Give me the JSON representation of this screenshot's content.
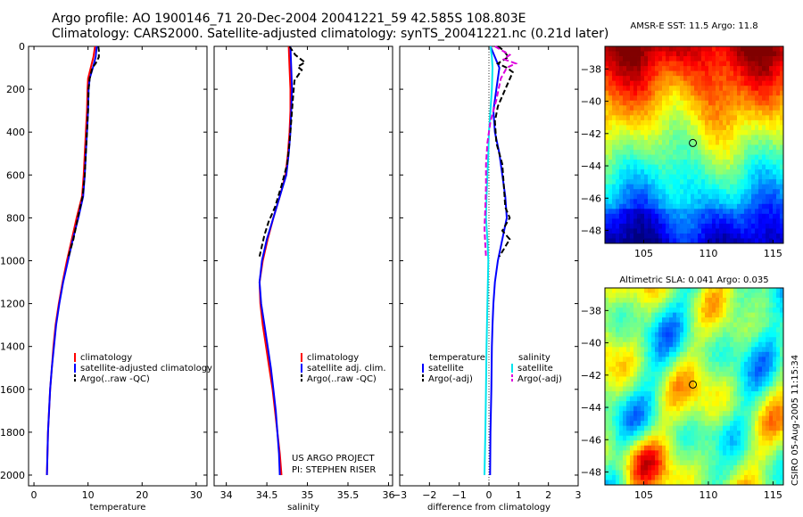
{
  "header": {
    "line1": "Argo profile: AO 1900146_71 20-Dec-2004 20041221_59 42.585S 108.803E",
    "line2": "Climatology: CARS2000. Satellite-adjusted climatology: synTS_20041221.nc (0.21d later)"
  },
  "project": {
    "line1": "US ARGO PROJECT",
    "line2": "PI: STEPHEN RISER"
  },
  "stamp": "CSIRO 05-Aug-2005 11:15:34",
  "colors": {
    "climatology": "#ff0000",
    "satellite": "#0000ff",
    "argo": "#000000",
    "satellite_salinity_diff": "#00e5ee",
    "argo_salinity_diff": "#dd00dd"
  },
  "chart_data": [
    {
      "type": "line",
      "id": "temperature",
      "xlabel": "temperature",
      "xlim": [
        -1,
        32
      ],
      "ylim": [
        0,
        2050
      ],
      "y_reversed": true,
      "xticks": [
        0,
        10,
        20,
        30
      ],
      "yticks": [
        0,
        200,
        400,
        600,
        800,
        1000,
        1200,
        1400,
        1600,
        1800,
        2000
      ],
      "legend": [
        "climatology",
        "satellite-adjusted climatology",
        "Argo(..raw -QC)"
      ],
      "series": [
        {
          "name": "climatology",
          "color": "#ff0000",
          "points": [
            [
              11.3,
              0
            ],
            [
              11.0,
              50
            ],
            [
              10.5,
              100
            ],
            [
              10.0,
              150
            ],
            [
              9.9,
              200
            ],
            [
              9.8,
              300
            ],
            [
              9.6,
              400
            ],
            [
              9.4,
              500
            ],
            [
              9.2,
              600
            ],
            [
              8.9,
              700
            ],
            [
              7.9,
              800
            ],
            [
              7.0,
              900
            ],
            [
              6.1,
              1000
            ],
            [
              5.3,
              1100
            ],
            [
              4.6,
              1200
            ],
            [
              4.0,
              1300
            ],
            [
              3.6,
              1400
            ],
            [
              3.3,
              1500
            ],
            [
              3.0,
              1600
            ],
            [
              2.8,
              1700
            ],
            [
              2.6,
              1800
            ],
            [
              2.5,
              1900
            ],
            [
              2.4,
              2000
            ]
          ]
        },
        {
          "name": "satellite-adjusted climatology",
          "color": "#0000ff",
          "points": [
            [
              11.6,
              0
            ],
            [
              11.4,
              50
            ],
            [
              10.9,
              100
            ],
            [
              10.3,
              150
            ],
            [
              10.1,
              200
            ],
            [
              10.0,
              300
            ],
            [
              9.8,
              400
            ],
            [
              9.6,
              500
            ],
            [
              9.4,
              600
            ],
            [
              9.1,
              700
            ],
            [
              8.2,
              800
            ],
            [
              7.2,
              900
            ],
            [
              6.3,
              1000
            ],
            [
              5.4,
              1100
            ],
            [
              4.7,
              1200
            ],
            [
              4.1,
              1300
            ],
            [
              3.7,
              1400
            ],
            [
              3.3,
              1500
            ],
            [
              3.0,
              1600
            ],
            [
              2.8,
              1700
            ],
            [
              2.6,
              1800
            ],
            [
              2.5,
              1900
            ],
            [
              2.4,
              2000
            ]
          ]
        },
        {
          "name": "Argo(..raw -QC)",
          "color": "#000000",
          "dash": true,
          "points": [
            [
              11.9,
              0
            ],
            [
              12.0,
              20
            ],
            [
              12.0,
              50
            ],
            [
              11.4,
              80
            ],
            [
              10.8,
              100
            ],
            [
              10.3,
              150
            ],
            [
              10.1,
              200
            ],
            [
              10.0,
              300
            ],
            [
              9.8,
              400
            ],
            [
              9.6,
              500
            ],
            [
              9.4,
              600
            ],
            [
              9.0,
              700
            ],
            [
              8.1,
              800
            ],
            [
              7.3,
              900
            ],
            [
              6.4,
              980
            ]
          ]
        }
      ]
    },
    {
      "type": "line",
      "id": "salinity",
      "xlabel": "salinity",
      "xlim": [
        33.85,
        36.05
      ],
      "ylim": [
        0,
        2050
      ],
      "y_reversed": true,
      "xticks": [
        34,
        34.5,
        35,
        35.5,
        36
      ],
      "yticks": [
        0,
        200,
        400,
        600,
        800,
        1000,
        1200,
        1400,
        1600,
        1800,
        2000
      ],
      "legend": [
        "climatology",
        "satellite adj. clim.",
        "Argo(..raw -QC)"
      ],
      "series": [
        {
          "name": "climatology",
          "color": "#ff0000",
          "points": [
            [
              34.77,
              0
            ],
            [
              34.78,
              100
            ],
            [
              34.79,
              200
            ],
            [
              34.79,
              300
            ],
            [
              34.78,
              400
            ],
            [
              34.76,
              500
            ],
            [
              34.73,
              600
            ],
            [
              34.66,
              700
            ],
            [
              34.58,
              800
            ],
            [
              34.51,
              900
            ],
            [
              34.45,
              1000
            ],
            [
              34.41,
              1100
            ],
            [
              34.42,
              1200
            ],
            [
              34.45,
              1300
            ],
            [
              34.49,
              1400
            ],
            [
              34.53,
              1500
            ],
            [
              34.57,
              1600
            ],
            [
              34.6,
              1700
            ],
            [
              34.63,
              1800
            ],
            [
              34.66,
              1900
            ],
            [
              34.68,
              2000
            ]
          ]
        },
        {
          "name": "satellite adj. clim.",
          "color": "#0000ff",
          "points": [
            [
              34.79,
              0
            ],
            [
              34.8,
              100
            ],
            [
              34.81,
              200
            ],
            [
              34.8,
              300
            ],
            [
              34.79,
              400
            ],
            [
              34.77,
              500
            ],
            [
              34.74,
              600
            ],
            [
              34.66,
              700
            ],
            [
              34.58,
              800
            ],
            [
              34.5,
              900
            ],
            [
              34.44,
              1000
            ],
            [
              34.41,
              1100
            ],
            [
              34.43,
              1200
            ],
            [
              34.47,
              1300
            ],
            [
              34.51,
              1400
            ],
            [
              34.55,
              1500
            ],
            [
              34.58,
              1600
            ],
            [
              34.61,
              1700
            ],
            [
              34.63,
              1800
            ],
            [
              34.65,
              1900
            ],
            [
              34.66,
              2000
            ]
          ]
        },
        {
          "name": "Argo(..raw -QC)",
          "color": "#000000",
          "dash": true,
          "points": [
            [
              34.78,
              0
            ],
            [
              34.85,
              40
            ],
            [
              34.97,
              75
            ],
            [
              34.88,
              95
            ],
            [
              34.93,
              110
            ],
            [
              34.84,
              160
            ],
            [
              34.82,
              250
            ],
            [
              34.8,
              350
            ],
            [
              34.78,
              450
            ],
            [
              34.75,
              550
            ],
            [
              34.68,
              650
            ],
            [
              34.6,
              750
            ],
            [
              34.52,
              820
            ],
            [
              34.47,
              880
            ],
            [
              34.44,
              930
            ],
            [
              34.41,
              980
            ]
          ]
        }
      ]
    },
    {
      "type": "line",
      "id": "difference",
      "xlabel": "difference from climatology",
      "xlim": [
        -3,
        3
      ],
      "ylim": [
        0,
        2050
      ],
      "y_reversed": true,
      "xticks": [
        -3,
        -2,
        -1,
        0,
        1,
        2,
        3
      ],
      "yticks": [
        0,
        200,
        400,
        600,
        800,
        1000,
        1200,
        1400,
        1600,
        1800,
        2000
      ],
      "legend_left": {
        "header": "temperature",
        "items": [
          "satellite",
          "Argo(-adj)"
        ]
      },
      "legend_right": {
        "header": "salinity",
        "items": [
          "satellite",
          "Argo(-adj)"
        ]
      },
      "series": [
        {
          "name": "satellite",
          "group": "temperature",
          "color": "#0000ff",
          "points": [
            [
              0.05,
              0
            ],
            [
              0.2,
              50
            ],
            [
              0.35,
              100
            ],
            [
              0.25,
              200
            ],
            [
              0.15,
              300
            ],
            [
              0.2,
              400
            ],
            [
              0.35,
              500
            ],
            [
              0.45,
              600
            ],
            [
              0.55,
              700
            ],
            [
              0.6,
              800
            ],
            [
              0.45,
              900
            ],
            [
              0.3,
              1000
            ],
            [
              0.2,
              1100
            ],
            [
              0.15,
              1200
            ],
            [
              0.12,
              1300
            ],
            [
              0.1,
              1400
            ],
            [
              0.08,
              1600
            ],
            [
              0.05,
              1800
            ],
            [
              0.04,
              2000
            ]
          ]
        },
        {
          "name": "Argo(-adj)",
          "group": "temperature",
          "color": "#000000",
          "dash": true,
          "points": [
            [
              0.3,
              0
            ],
            [
              0.5,
              20
            ],
            [
              0.65,
              50
            ],
            [
              0.3,
              80
            ],
            [
              0.6,
              100
            ],
            [
              0.8,
              120
            ],
            [
              0.55,
              200
            ],
            [
              0.3,
              280
            ],
            [
              0.2,
              350
            ],
            [
              0.25,
              450
            ],
            [
              0.45,
              550
            ],
            [
              0.5,
              650
            ],
            [
              0.55,
              750
            ],
            [
              0.7,
              800
            ],
            [
              0.45,
              860
            ],
            [
              0.7,
              900
            ],
            [
              0.35,
              980
            ]
          ]
        },
        {
          "name": "satellite",
          "group": "salinity",
          "color": "#00e5ee",
          "points": [
            [
              0.05,
              0
            ],
            [
              0.1,
              50
            ],
            [
              0.12,
              100
            ],
            [
              0.1,
              200
            ],
            [
              0.05,
              300
            ],
            [
              0.0,
              400
            ],
            [
              -0.02,
              500
            ],
            [
              -0.05,
              600
            ],
            [
              -0.08,
              700
            ],
            [
              -0.1,
              800
            ],
            [
              -0.05,
              900
            ],
            [
              -0.02,
              1000
            ],
            [
              -0.05,
              1200
            ],
            [
              -0.08,
              1400
            ],
            [
              -0.1,
              1600
            ],
            [
              -0.12,
              1800
            ],
            [
              -0.15,
              2000
            ]
          ]
        },
        {
          "name": "Argo(-adj)",
          "group": "salinity",
          "color": "#dd00dd",
          "dash": true,
          "points": [
            [
              0.2,
              0
            ],
            [
              0.7,
              40
            ],
            [
              0.5,
              60
            ],
            [
              0.9,
              80
            ],
            [
              0.6,
              100
            ],
            [
              0.4,
              150
            ],
            [
              0.25,
              250
            ],
            [
              0.05,
              350
            ],
            [
              -0.05,
              450
            ],
            [
              -0.1,
              550
            ],
            [
              -0.1,
              650
            ],
            [
              -0.12,
              750
            ],
            [
              -0.15,
              850
            ],
            [
              -0.12,
              930
            ],
            [
              -0.1,
              980
            ]
          ]
        }
      ]
    },
    {
      "type": "heatmap",
      "id": "sst_map",
      "title": "AMSR-E SST: 11.5 Argo: 11.8",
      "xlim": [
        102,
        115.8
      ],
      "ylim": [
        -48.8,
        -36.6
      ],
      "xticks": [
        105,
        110,
        115
      ],
      "yticks": [
        -38,
        -40,
        -42,
        -44,
        -46,
        -48
      ],
      "float_position": {
        "lon": 108.8,
        "lat": -42.585
      },
      "colormap": "jet"
    },
    {
      "type": "heatmap",
      "id": "sla_map",
      "title": "Altimetric SLA: 0.041 Argo: 0.035",
      "xlim": [
        102,
        115.8
      ],
      "ylim": [
        -48.8,
        -36.6
      ],
      "xticks": [
        105,
        110,
        115
      ],
      "yticks": [
        -38,
        -40,
        -42,
        -44,
        -46,
        -48
      ],
      "float_position": {
        "lon": 108.8,
        "lat": -42.585
      },
      "colormap": "jet"
    }
  ]
}
